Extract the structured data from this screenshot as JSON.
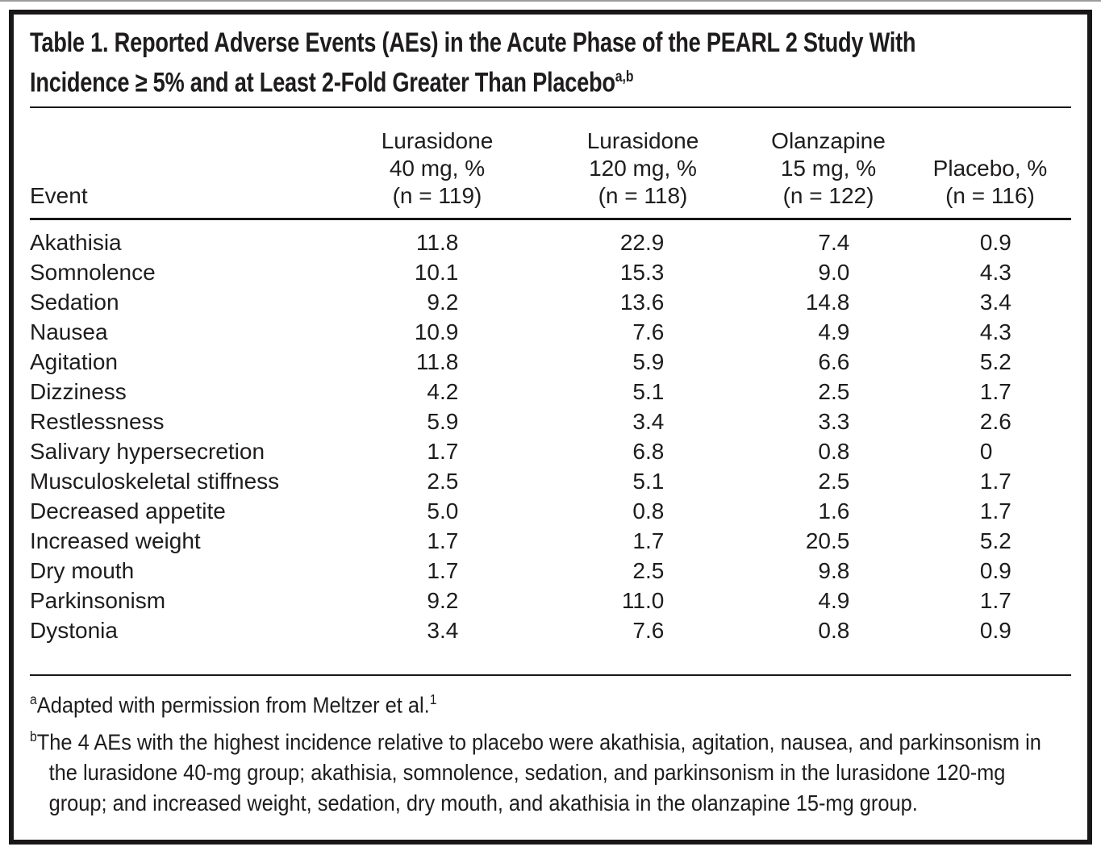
{
  "document": {
    "title": {
      "lines": [
        "Table 1. Reported Adverse Events (AEs) in the Acute Phase of the PEARL 2 Study With",
        "Incidence ≥ 5% and at Least 2-Fold Greater Than Placebo"
      ],
      "superscript": "a,b"
    },
    "table": {
      "columns": [
        {
          "name": "col-header-event",
          "lines": [
            "Event"
          ]
        },
        {
          "name": "col-header-lurasidone-40",
          "lines": [
            "Lurasidone",
            "40 mg, %",
            "(n = 119)"
          ]
        },
        {
          "name": "col-header-lurasidone-120",
          "lines": [
            "Lurasidone",
            "120 mg, %",
            "(n = 118)"
          ]
        },
        {
          "name": "col-header-olanzapine-15",
          "lines": [
            "Olanzapine",
            "15 mg, %",
            "(n = 122)"
          ]
        },
        {
          "name": "col-header-placebo",
          "lines": [
            "Placebo, %",
            "(n = 116)"
          ]
        }
      ],
      "rows": [
        {
          "event": "Akathisia",
          "values": [
            "11.8",
            "22.9",
            "7.4",
            "0.9"
          ]
        },
        {
          "event": "Somnolence",
          "values": [
            "10.1",
            "15.3",
            "9.0",
            "4.3"
          ]
        },
        {
          "event": "Sedation",
          "values": [
            "9.2",
            "13.6",
            "14.8",
            "3.4"
          ]
        },
        {
          "event": "Nausea",
          "values": [
            "10.9",
            "7.6",
            "4.9",
            "4.3"
          ]
        },
        {
          "event": "Agitation",
          "values": [
            "11.8",
            "5.9",
            "6.6",
            "5.2"
          ]
        },
        {
          "event": "Dizziness",
          "values": [
            "4.2",
            "5.1",
            "2.5",
            "1.7"
          ]
        },
        {
          "event": "Restlessness",
          "values": [
            "5.9",
            "3.4",
            "3.3",
            "2.6"
          ]
        },
        {
          "event": "Salivary hypersecretion",
          "values": [
            "1.7",
            "6.8",
            "0.8",
            "0"
          ]
        },
        {
          "event": "Musculoskeletal stiffness",
          "values": [
            "2.5",
            "5.1",
            "2.5",
            "1.7"
          ]
        },
        {
          "event": "Decreased appetite",
          "values": [
            "5.0",
            "0.8",
            "1.6",
            "1.7"
          ]
        },
        {
          "event": "Increased weight",
          "values": [
            "1.7",
            "1.7",
            "20.5",
            "5.2"
          ]
        },
        {
          "event": "Dry mouth",
          "values": [
            "1.7",
            "2.5",
            "9.8",
            "0.9"
          ]
        },
        {
          "event": "Parkinsonism",
          "values": [
            "9.2",
            "11.0",
            "4.9",
            "1.7"
          ]
        },
        {
          "event": "Dystonia",
          "values": [
            "3.4",
            "7.6",
            "0.8",
            "0.9"
          ]
        }
      ]
    },
    "footnotes": [
      {
        "marker": "a",
        "text": "Adapted with permission from Meltzer et al.",
        "reference": "1"
      },
      {
        "marker": "b",
        "text": "The 4 AEs with the highest incidence relative to placebo were akathisia, agitation, nausea, and parkinsonism in the lurasidone 40-mg group; akathisia, somnolence, sedation, and parkinsonism in the lurasidone 120-mg group; and increased weight, sedation, dry mouth, and akathisia in the olanzapine 15-mg group."
      }
    ],
    "colors": {
      "text": "#1e1c1d",
      "border": "#1a1718",
      "background": "#ffffff"
    }
  }
}
